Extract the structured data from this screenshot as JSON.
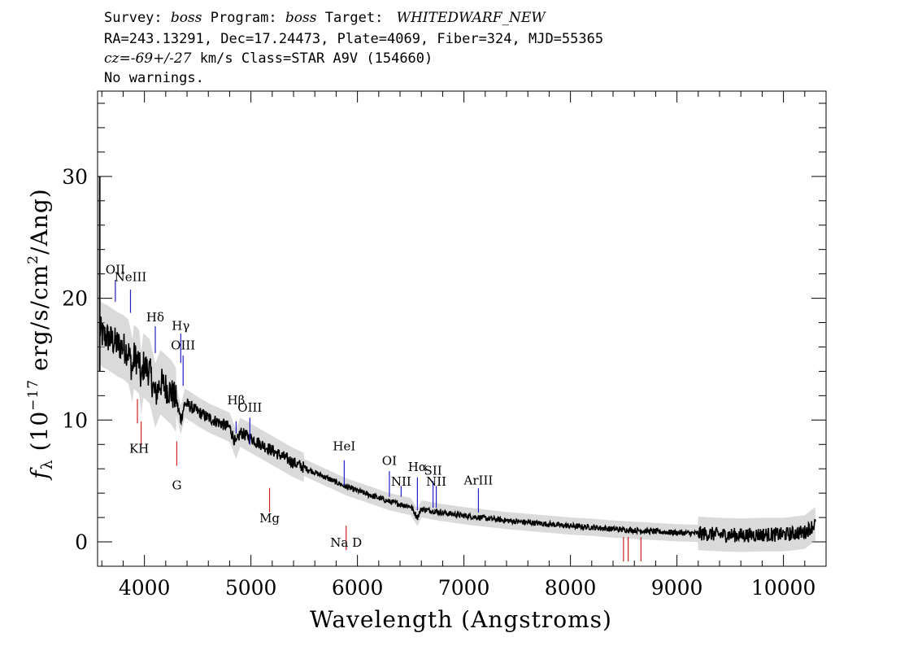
{
  "header": {
    "survey_label": "Survey:",
    "survey": "boss",
    "program_label": "Program:",
    "program": "boss",
    "target_label": "Target:",
    "target": "WHITEDWARF_NEW",
    "line2": "RA=243.13291, Dec=17.24473, Plate=4069, Fiber=324, MJD=55365",
    "cz_label": "cz",
    "cz_value": "=-69+/-27",
    "cz_rest": " km/s Class=STAR A9V (154660)",
    "warnings": "No warnings."
  },
  "chart_data": {
    "type": "line",
    "xlabel": "Wavelength (Angstroms)",
    "ylabel": {
      "f": "f",
      "sub": "λ",
      "pre": " (10",
      "exp1": "−17",
      "mid": " erg/s/cm",
      "exp2": "2",
      "post": "/Ang)"
    },
    "xlim": [
      3560,
      10400
    ],
    "ylim": [
      -2,
      37
    ],
    "x_ticks": [
      4000,
      5000,
      6000,
      7000,
      8000,
      9000,
      10000
    ],
    "y_ticks": [
      0,
      10,
      20,
      30
    ],
    "x_tick_labels": [
      "4000",
      "5000",
      "6000",
      "7000",
      "8000",
      "9000",
      "10000"
    ],
    "y_tick_labels": [
      "0",
      "10",
      "20",
      "30"
    ],
    "grid": false,
    "colors": {
      "flux": "#000000",
      "error": "#bbbbbb",
      "emission_line": "#2020c8",
      "absorption_line": "#d02020"
    },
    "flux_points": [
      [
        3580,
        17.5
      ],
      [
        3600,
        17.0
      ],
      [
        3650,
        16.8
      ],
      [
        3700,
        16.5
      ],
      [
        3750,
        16.2
      ],
      [
        3800,
        16.0
      ],
      [
        3850,
        15.6
      ],
      [
        3889,
        14.0
      ],
      [
        3900,
        15.2
      ],
      [
        3950,
        14.8
      ],
      [
        3970,
        13.0
      ],
      [
        3990,
        14.5
      ],
      [
        4050,
        14.0
      ],
      [
        4102,
        12.0
      ],
      [
        4150,
        13.1
      ],
      [
        4200,
        12.7
      ],
      [
        4250,
        12.3
      ],
      [
        4300,
        11.6
      ],
      [
        4341,
        10.0
      ],
      [
        4380,
        11.4
      ],
      [
        4450,
        11.0
      ],
      [
        4500,
        10.7
      ],
      [
        4600,
        10.2
      ],
      [
        4700,
        9.8
      ],
      [
        4800,
        9.4
      ],
      [
        4861,
        8.0
      ],
      [
        4900,
        9.0
      ],
      [
        5000,
        8.5
      ],
      [
        5100,
        8.0
      ],
      [
        5200,
        7.5
      ],
      [
        5300,
        7.0
      ],
      [
        5400,
        6.5
      ],
      [
        5500,
        6.1
      ],
      [
        5600,
        5.7
      ],
      [
        5700,
        5.3
      ],
      [
        5800,
        4.9
      ],
      [
        5900,
        4.5
      ],
      [
        6000,
        4.2
      ],
      [
        6100,
        3.9
      ],
      [
        6200,
        3.6
      ],
      [
        6300,
        3.3
      ],
      [
        6400,
        3.1
      ],
      [
        6500,
        2.9
      ],
      [
        6563,
        2.0
      ],
      [
        6600,
        2.7
      ],
      [
        6700,
        2.55
      ],
      [
        6800,
        2.4
      ],
      [
        7000,
        2.15
      ],
      [
        7200,
        1.95
      ],
      [
        7400,
        1.75
      ],
      [
        7600,
        1.6
      ],
      [
        7800,
        1.45
      ],
      [
        8000,
        1.3
      ],
      [
        8200,
        1.2
      ],
      [
        8400,
        1.05
      ],
      [
        8600,
        0.95
      ],
      [
        8800,
        0.85
      ],
      [
        9000,
        0.75
      ],
      [
        9200,
        0.7
      ],
      [
        9400,
        0.6
      ],
      [
        9600,
        0.55
      ],
      [
        9800,
        0.6
      ],
      [
        10000,
        0.6
      ],
      [
        10200,
        0.8
      ],
      [
        10300,
        1.5
      ]
    ],
    "annotations": {
      "emission_lines": [
        {
          "label": "OII",
          "wavelength": 3727
        },
        {
          "label": "NeIII",
          "wavelength": 3869
        },
        {
          "label": "Hδ",
          "wavelength": 4102
        },
        {
          "label": "Hγ",
          "wavelength": 4341
        },
        {
          "label": "OIII",
          "wavelength": 4363
        },
        {
          "label": "Hβ",
          "wavelength": 4861
        },
        {
          "label": "OIII",
          "wavelength": 4959
        },
        {
          "label": "OIII",
          "wavelength": 5007
        },
        {
          "label": "HeI",
          "wavelength": 5876
        },
        {
          "label": "OI",
          "wavelength": 6300
        },
        {
          "label": "NII",
          "wavelength": 6548
        },
        {
          "label": "Hα",
          "wavelength": 6563
        },
        {
          "label": "NII",
          "wavelength": 6583
        },
        {
          "label": "SII",
          "wavelength": 6717
        },
        {
          "label": "SII",
          "wavelength": 6731
        },
        {
          "label": "ArIII",
          "wavelength": 7136
        }
      ],
      "emission_text_labels": [
        {
          "label": "OII",
          "wavelength": 3727,
          "flux": 22.0,
          "tick_top": 21.5,
          "tick_bottom": 19.7
        },
        {
          "label": "NeIII",
          "wavelength": 3869,
          "flux": 21.4,
          "tick_top": 20.7,
          "tick_bottom": 18.8
        },
        {
          "label": "Hδ",
          "wavelength": 4102,
          "flux": 18.1,
          "tick_top": 17.7,
          "tick_bottom": 15.5
        },
        {
          "label": "Hγ",
          "wavelength": 4341,
          "flux": 17.4,
          "tick_top": 17.1,
          "tick_bottom": 14.7
        },
        {
          "label": "OIII",
          "wavelength": 4363,
          "flux": 15.8,
          "tick_top": 15.3,
          "tick_bottom": 12.8
        },
        {
          "label": "Hβ",
          "wavelength": 4861,
          "flux": 11.3,
          "tick_top": 9.9,
          "tick_bottom": 8.9
        },
        {
          "label": "OIII",
          "wavelength": 4990,
          "flux": 10.7,
          "tick_top": 10.2,
          "tick_bottom": 8.0
        },
        {
          "label": "HeI",
          "wavelength": 5876,
          "flux": 7.5,
          "tick_top": 6.7,
          "tick_bottom": 4.6
        },
        {
          "label": "OI",
          "wavelength": 6300,
          "flux": 6.3,
          "tick_top": 5.8,
          "tick_bottom": 3.7
        },
        {
          "label": "NII",
          "wavelength": 6410,
          "flux": 4.6,
          "tick_top": 4.6,
          "tick_bottom": 3.7
        },
        {
          "label": "Hα",
          "wavelength": 6563,
          "flux": 5.8,
          "tick_top": 5.3,
          "tick_bottom": 2.6
        },
        {
          "label": "SII",
          "wavelength": 6710,
          "flux": 5.5,
          "tick_top": 5.0,
          "tick_bottom": 2.8
        },
        {
          "label": "NII",
          "wavelength": 6740,
          "flux": 4.6,
          "tick_top": 4.6,
          "tick_bottom": 2.8
        },
        {
          "label": "ArIII",
          "wavelength": 7136,
          "flux": 4.7,
          "tick_top": 4.4,
          "tick_bottom": 2.4
        }
      ],
      "absorption_lines": [
        {
          "label": "K",
          "wavelength": 3934
        },
        {
          "label": "H",
          "wavelength": 3969
        },
        {
          "label": "G",
          "wavelength": 4304
        },
        {
          "label": "Mg",
          "wavelength": 5175
        },
        {
          "label": "Na D",
          "wavelength": 5894
        },
        {
          "label": "",
          "wavelength": 8498
        },
        {
          "label": "",
          "wavelength": 8542
        },
        {
          "label": "",
          "wavelength": 8662
        }
      ],
      "absorption_text_labels": [
        {
          "label": "KH",
          "wavelength": 3950,
          "flux": 7.3
        },
        {
          "label": "G",
          "wavelength": 4304,
          "flux": 4.3
        },
        {
          "label": "Mg",
          "wavelength": 5175,
          "flux": 1.6
        },
        {
          "label": "Na D",
          "wavelength": 5894,
          "flux": -0.4
        }
      ]
    }
  }
}
